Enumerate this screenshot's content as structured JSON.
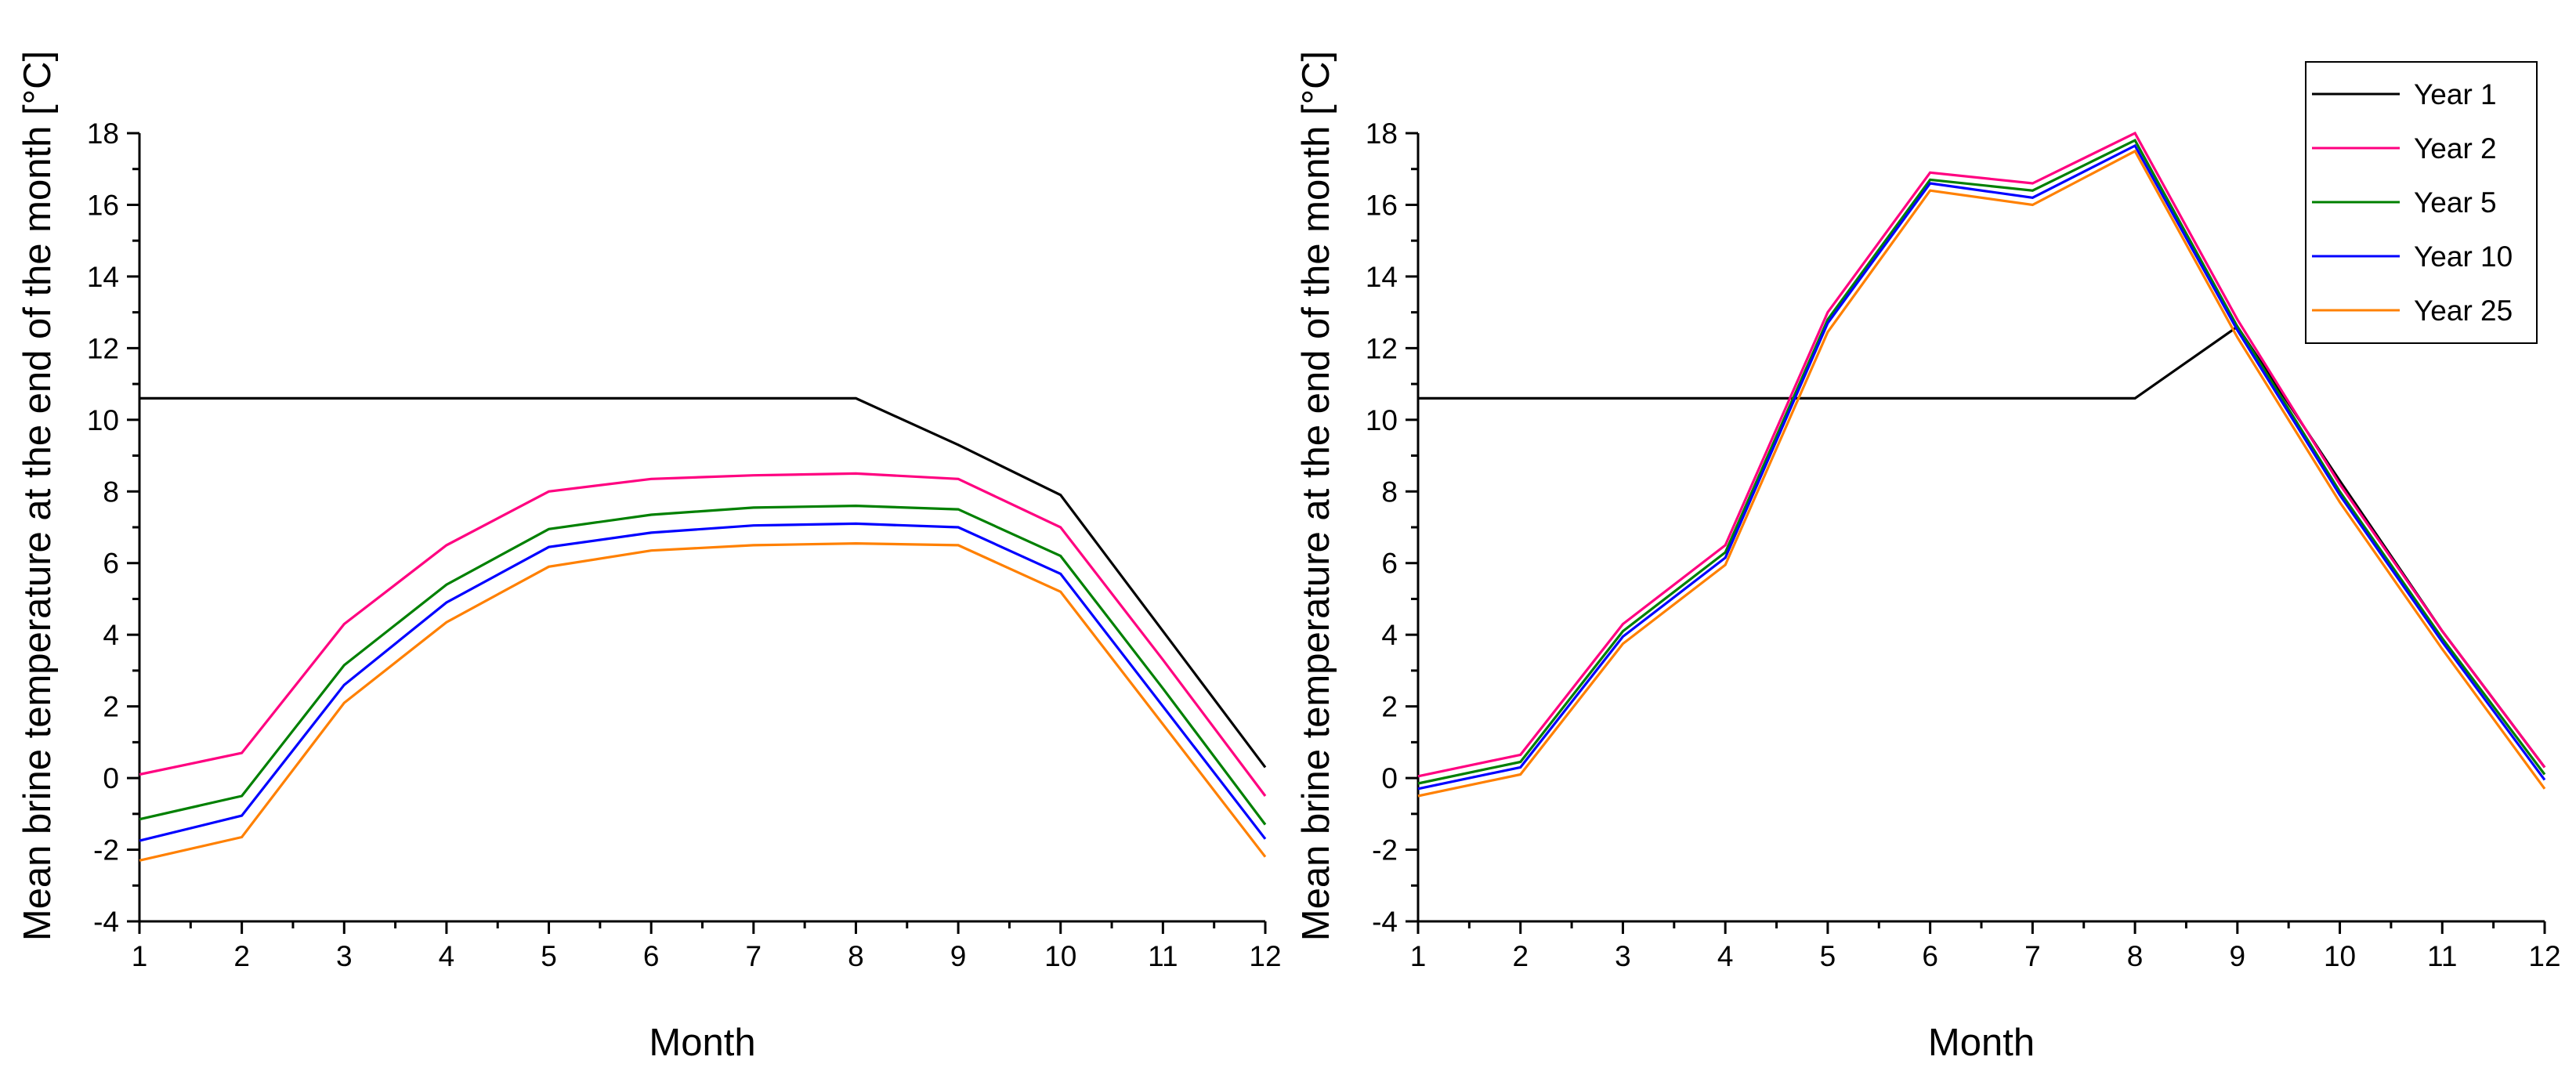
{
  "chart_data": [
    {
      "type": "line",
      "title": "",
      "xlabel": "Month",
      "ylabel": "Mean brine temperature at the end of the month [°C]",
      "xlim": [
        1,
        12
      ],
      "ylim": [
        -4,
        18
      ],
      "x": [
        1,
        2,
        3,
        4,
        5,
        6,
        7,
        8,
        9,
        10,
        11,
        12
      ],
      "xticks": [
        1,
        2,
        3,
        4,
        5,
        6,
        7,
        8,
        9,
        10,
        11,
        12
      ],
      "yticks": [
        -4,
        -2,
        0,
        2,
        4,
        6,
        8,
        10,
        12,
        14,
        16,
        18
      ],
      "grid": false,
      "legend": null,
      "series": [
        {
          "name": "Year 1",
          "color": "#000000",
          "values": [
            10.6,
            10.6,
            10.6,
            10.6,
            10.6,
            10.6,
            10.6,
            10.6,
            9.3,
            7.9,
            4.1,
            0.3
          ]
        },
        {
          "name": "Year 2",
          "color": "#ff0080",
          "values": [
            0.1,
            0.7,
            4.3,
            6.5,
            8.0,
            8.35,
            8.45,
            8.5,
            8.35,
            7.0,
            3.3,
            -0.5
          ]
        },
        {
          "name": "Year 5",
          "color": "#008000",
          "values": [
            -1.15,
            -0.5,
            3.15,
            5.4,
            6.95,
            7.35,
            7.55,
            7.6,
            7.5,
            6.2,
            2.5,
            -1.3
          ]
        },
        {
          "name": "Year 10",
          "color": "#0000ff",
          "values": [
            -1.75,
            -1.05,
            2.6,
            4.9,
            6.45,
            6.85,
            7.05,
            7.1,
            7.0,
            5.7,
            2.0,
            -1.7
          ]
        },
        {
          "name": "Year 25",
          "color": "#ff8000",
          "values": [
            -2.3,
            -1.65,
            2.1,
            4.35,
            5.9,
            6.35,
            6.5,
            6.55,
            6.5,
            5.2,
            1.5,
            -2.2
          ]
        }
      ]
    },
    {
      "type": "line",
      "title": "",
      "xlabel": "Month",
      "ylabel": "Mean brine temperature at the end of the month [°C]",
      "xlim": [
        1,
        12
      ],
      "ylim": [
        -4,
        18
      ],
      "x": [
        1,
        2,
        3,
        4,
        5,
        6,
        7,
        8,
        9,
        10,
        11,
        12
      ],
      "xticks": [
        1,
        2,
        3,
        4,
        5,
        6,
        7,
        8,
        9,
        10,
        11,
        12
      ],
      "yticks": [
        -4,
        -2,
        0,
        2,
        4,
        6,
        8,
        10,
        12,
        14,
        16,
        18
      ],
      "grid": false,
      "legend": "top-right",
      "series": [
        {
          "name": "Year 1",
          "color": "#000000",
          "values": [
            10.6,
            10.6,
            10.6,
            10.6,
            10.6,
            10.6,
            10.6,
            10.6,
            12.6,
            8.3,
            4.1,
            0.3
          ]
        },
        {
          "name": "Year 2",
          "color": "#ff0080",
          "values": [
            0.05,
            0.65,
            4.3,
            6.5,
            13.0,
            16.9,
            16.6,
            18.0,
            12.8,
            8.2,
            4.1,
            0.3
          ]
        },
        {
          "name": "Year 5",
          "color": "#008000",
          "values": [
            -0.15,
            0.45,
            4.1,
            6.3,
            12.8,
            16.7,
            16.4,
            17.8,
            12.6,
            8.0,
            3.9,
            0.1
          ]
        },
        {
          "name": "Year 10",
          "color": "#0000ff",
          "values": [
            -0.3,
            0.3,
            3.95,
            6.15,
            12.7,
            16.6,
            16.2,
            17.65,
            12.5,
            7.9,
            3.8,
            -0.05
          ]
        },
        {
          "name": "Year 25",
          "color": "#ff8000",
          "values": [
            -0.5,
            0.1,
            3.75,
            5.95,
            12.45,
            16.4,
            16.0,
            17.5,
            12.3,
            7.7,
            3.6,
            -0.3
          ]
        }
      ]
    }
  ]
}
